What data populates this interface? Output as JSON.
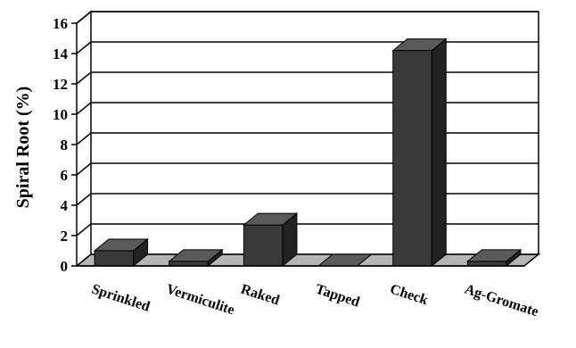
{
  "chart_data": {
    "type": "bar",
    "title": "",
    "xlabel": "",
    "ylabel": "Spiral Root (%)",
    "categories": [
      "Sprinkled",
      "Vermiculite",
      "Raked",
      "Tapped",
      "Check",
      "Ag-Gromate"
    ],
    "values": [
      1.0,
      0.3,
      2.7,
      0.0,
      14.2,
      0.3
    ],
    "ylim": [
      0,
      16
    ],
    "yticks": [
      "0",
      "2",
      "4",
      "6",
      "8",
      "10",
      "12",
      "14",
      "16"
    ],
    "grid": true,
    "legend": "none",
    "style": "3d",
    "colors": {
      "bar_front": "#3a3a3a",
      "bar_top": "#5a5a5a",
      "bar_side": "#222222",
      "floor": "#b5b5b5",
      "wall": "#ffffff"
    }
  }
}
